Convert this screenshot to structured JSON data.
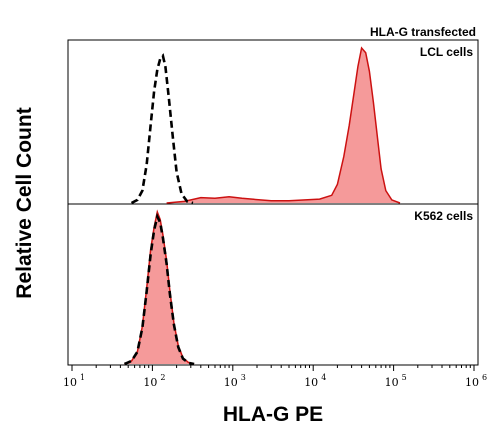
{
  "chart_data": {
    "type": "area",
    "header": "HLA-G transfected",
    "ylabel": "Relative Cell Count",
    "xlabel": "HLA-G PE",
    "xscale": "log",
    "xlim": [
      10,
      1000000
    ],
    "ticks": [
      {
        "base": "10",
        "exp": "1",
        "value": 10
      },
      {
        "base": "10",
        "exp": "2",
        "value": 100
      },
      {
        "base": "10",
        "exp": "3",
        "value": 1000
      },
      {
        "base": "10",
        "exp": "4",
        "value": 10000
      },
      {
        "base": "10",
        "exp": "5",
        "value": 100000
      },
      {
        "base": "10",
        "exp": "6",
        "value": 1000000
      }
    ],
    "fill_color": "#f59a9a",
    "line_color": "#cc1111",
    "control_color": "#000000",
    "panels": [
      {
        "label": "LCL cells",
        "series": [
          {
            "style": "filled",
            "points": [
              [
                150,
                0
              ],
              [
                250,
                0.01
              ],
              [
                400,
                0.035
              ],
              [
                600,
                0.03
              ],
              [
                900,
                0.04
              ],
              [
                1300,
                0.03
              ],
              [
                2000,
                0.022
              ],
              [
                3000,
                0.015
              ],
              [
                5000,
                0.015
              ],
              [
                8000,
                0.02
              ],
              [
                12000,
                0.025
              ],
              [
                17000,
                0.05
              ],
              [
                20000,
                0.12
              ],
              [
                24000,
                0.3
              ],
              [
                28000,
                0.5
              ],
              [
                32000,
                0.7
              ],
              [
                36000,
                0.88
              ],
              [
                40000,
                1.0
              ],
              [
                45000,
                0.97
              ],
              [
                50000,
                0.85
              ],
              [
                56000,
                0.65
              ],
              [
                63000,
                0.42
              ],
              [
                70000,
                0.22
              ],
              [
                80000,
                0.08
              ],
              [
                95000,
                0.02
              ],
              [
                120000,
                0
              ]
            ]
          },
          {
            "style": "dashed",
            "points": [
              [
                55,
                0
              ],
              [
                65,
                0.02
              ],
              [
                75,
                0.08
              ],
              [
                85,
                0.25
              ],
              [
                95,
                0.5
              ],
              [
                105,
                0.72
              ],
              [
                115,
                0.86
              ],
              [
                125,
                0.93
              ],
              [
                135,
                0.95
              ],
              [
                145,
                0.88
              ],
              [
                160,
                0.68
              ],
              [
                180,
                0.42
              ],
              [
                200,
                0.2
              ],
              [
                230,
                0.06
              ],
              [
                270,
                0.01
              ],
              [
                320,
                0
              ]
            ]
          }
        ]
      },
      {
        "label": "K562 cells",
        "series": [
          {
            "style": "filled",
            "points": [
              [
                45,
                0
              ],
              [
                55,
                0.02
              ],
              [
                65,
                0.08
              ],
              [
                75,
                0.25
              ],
              [
                85,
                0.5
              ],
              [
                95,
                0.75
              ],
              [
                105,
                0.9
              ],
              [
                115,
                1.0
              ],
              [
                125,
                0.95
              ],
              [
                135,
                0.85
              ],
              [
                150,
                0.68
              ],
              [
                165,
                0.48
              ],
              [
                185,
                0.27
              ],
              [
                210,
                0.12
              ],
              [
                240,
                0.04
              ],
              [
                280,
                0.01
              ],
              [
                330,
                0
              ]
            ]
          },
          {
            "style": "dashed",
            "points": [
              [
                45,
                0
              ],
              [
                55,
                0.02
              ],
              [
                65,
                0.08
              ],
              [
                75,
                0.24
              ],
              [
                85,
                0.48
              ],
              [
                95,
                0.72
              ],
              [
                105,
                0.88
              ],
              [
                115,
                0.97
              ],
              [
                125,
                0.93
              ],
              [
                135,
                0.83
              ],
              [
                150,
                0.66
              ],
              [
                165,
                0.46
              ],
              [
                185,
                0.26
              ],
              [
                210,
                0.11
              ],
              [
                240,
                0.035
              ],
              [
                280,
                0.008
              ],
              [
                330,
                0
              ]
            ]
          }
        ]
      }
    ]
  }
}
